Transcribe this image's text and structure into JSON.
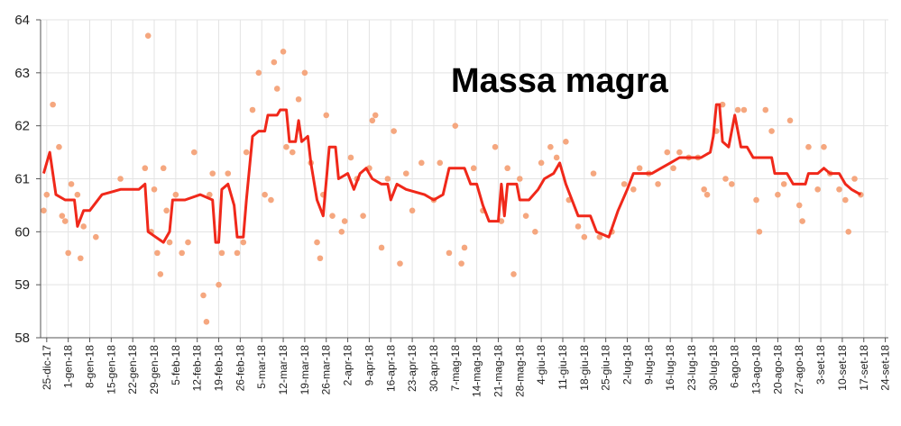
{
  "chart_data": {
    "type": "line",
    "title": "Massa magra",
    "xlim": [
      "2017-12-23",
      "2018-09-25"
    ],
    "ylim": [
      58,
      64
    ],
    "yticks": [
      58,
      59,
      60,
      61,
      62,
      63,
      64
    ],
    "grid": true,
    "xticks": [
      {
        "value": "2017-12-25",
        "label": "25-dic-17"
      },
      {
        "value": "2018-01-01",
        "label": "1-gen-18"
      },
      {
        "value": "2018-01-08",
        "label": "8-gen-18"
      },
      {
        "value": "2018-01-15",
        "label": "15-gen-18"
      },
      {
        "value": "2018-01-22",
        "label": "22-gen-18"
      },
      {
        "value": "2018-01-29",
        "label": "29-gen-18"
      },
      {
        "value": "2018-02-05",
        "label": "5-feb-18"
      },
      {
        "value": "2018-02-12",
        "label": "12-feb-18"
      },
      {
        "value": "2018-02-19",
        "label": "19-feb-18"
      },
      {
        "value": "2018-02-26",
        "label": "26-feb-18"
      },
      {
        "value": "2018-03-05",
        "label": "5-mar-18"
      },
      {
        "value": "2018-03-12",
        "label": "12-mar-18"
      },
      {
        "value": "2018-03-19",
        "label": "19-mar-18"
      },
      {
        "value": "2018-03-26",
        "label": "26-mar-18"
      },
      {
        "value": "2018-04-02",
        "label": "2-apr-18"
      },
      {
        "value": "2018-04-09",
        "label": "9-apr-18"
      },
      {
        "value": "2018-04-16",
        "label": "16-apr-18"
      },
      {
        "value": "2018-04-23",
        "label": "23-apr-18"
      },
      {
        "value": "2018-04-30",
        "label": "30-apr-18"
      },
      {
        "value": "2018-05-07",
        "label": "7-mag-18"
      },
      {
        "value": "2018-05-14",
        "label": "14-mag-18"
      },
      {
        "value": "2018-05-21",
        "label": "21-mag-18"
      },
      {
        "value": "2018-05-28",
        "label": "28-mag-18"
      },
      {
        "value": "2018-06-04",
        "label": "4-giu-18"
      },
      {
        "value": "2018-06-11",
        "label": "11-giu-18"
      },
      {
        "value": "2018-06-18",
        "label": "18-giu-18"
      },
      {
        "value": "2018-06-25",
        "label": "25-giu-18"
      },
      {
        "value": "2018-07-02",
        "label": "2-lug-18"
      },
      {
        "value": "2018-07-09",
        "label": "9-lug-18"
      },
      {
        "value": "2018-07-16",
        "label": "16-lug-18"
      },
      {
        "value": "2018-07-23",
        "label": "23-lug-18"
      },
      {
        "value": "2018-07-30",
        "label": "30-lug-18"
      },
      {
        "value": "2018-08-06",
        "label": "6-ago-18"
      },
      {
        "value": "2018-08-13",
        "label": "13-ago-18"
      },
      {
        "value": "2018-08-20",
        "label": "20-ago-18"
      },
      {
        "value": "2018-08-27",
        "label": "27-ago-18"
      },
      {
        "value": "2018-09-03",
        "label": "3-set-18"
      },
      {
        "value": "2018-09-10",
        "label": "10-set-18"
      },
      {
        "value": "2018-09-17",
        "label": "17-set-18"
      },
      {
        "value": "2018-09-24",
        "label": "24-set-18"
      }
    ],
    "series": [
      {
        "type": "scatter",
        "color": "#f5a77f",
        "x": [
          "2017-12-24",
          "2017-12-25",
          "2017-12-27",
          "2017-12-29",
          "2017-12-30",
          "2017-12-31",
          "2018-01-01",
          "2018-01-02",
          "2018-01-04",
          "2018-01-05",
          "2018-01-06",
          "2018-01-10",
          "2018-01-18",
          "2018-01-26",
          "2018-01-27",
          "2018-01-28",
          "2018-01-29",
          "2018-01-30",
          "2018-01-31",
          "2018-02-01",
          "2018-02-02",
          "2018-02-03",
          "2018-02-05",
          "2018-02-07",
          "2018-02-09",
          "2018-02-11",
          "2018-02-14",
          "2018-02-15",
          "2018-02-16",
          "2018-02-17",
          "2018-02-19",
          "2018-02-20",
          "2018-02-22",
          "2018-02-25",
          "2018-02-27",
          "2018-02-28",
          "2018-03-02",
          "2018-03-04",
          "2018-03-06",
          "2018-03-08",
          "2018-03-09",
          "2018-03-10",
          "2018-03-12",
          "2018-03-13",
          "2018-03-15",
          "2018-03-17",
          "2018-03-19",
          "2018-03-21",
          "2018-03-23",
          "2018-03-24",
          "2018-03-25",
          "2018-03-26",
          "2018-03-28",
          "2018-03-31",
          "2018-04-01",
          "2018-04-03",
          "2018-04-05",
          "2018-04-07",
          "2018-04-09",
          "2018-04-10",
          "2018-04-11",
          "2018-04-13",
          "2018-04-15",
          "2018-04-17",
          "2018-04-19",
          "2018-04-21",
          "2018-04-23",
          "2018-04-26",
          "2018-04-30",
          "2018-05-02",
          "2018-05-05",
          "2018-05-07",
          "2018-05-09",
          "2018-05-10",
          "2018-05-13",
          "2018-05-16",
          "2018-05-20",
          "2018-05-22",
          "2018-05-24",
          "2018-05-26",
          "2018-05-28",
          "2018-05-30",
          "2018-06-02",
          "2018-06-04",
          "2018-06-07",
          "2018-06-09",
          "2018-06-12",
          "2018-06-13",
          "2018-06-16",
          "2018-06-18",
          "2018-06-21",
          "2018-06-23",
          "2018-06-27",
          "2018-07-01",
          "2018-07-04",
          "2018-07-06",
          "2018-07-09",
          "2018-07-12",
          "2018-07-15",
          "2018-07-17",
          "2018-07-19",
          "2018-07-22",
          "2018-07-25",
          "2018-07-27",
          "2018-07-28",
          "2018-07-31",
          "2018-08-02",
          "2018-08-03",
          "2018-08-05",
          "2018-08-07",
          "2018-08-09",
          "2018-08-13",
          "2018-08-14",
          "2018-08-16",
          "2018-08-18",
          "2018-08-20",
          "2018-08-22",
          "2018-08-24",
          "2018-08-27",
          "2018-08-28",
          "2018-08-30",
          "2018-09-02",
          "2018-09-04",
          "2018-09-06",
          "2018-09-09",
          "2018-09-11",
          "2018-09-12",
          "2018-09-14",
          "2018-09-16"
        ],
        "values": [
          60.4,
          60.7,
          62.4,
          61.6,
          60.3,
          60.2,
          59.6,
          60.9,
          60.7,
          59.5,
          60.1,
          59.9,
          61.0,
          61.2,
          63.7,
          60.0,
          60.8,
          59.6,
          59.2,
          61.2,
          60.4,
          59.8,
          60.7,
          59.6,
          59.8,
          61.5,
          58.8,
          58.3,
          60.7,
          61.1,
          59.0,
          59.6,
          61.1,
          59.6,
          59.8,
          61.5,
          62.3,
          63.0,
          60.7,
          60.6,
          63.2,
          62.7,
          63.4,
          61.6,
          61.5,
          62.5,
          63.0,
          61.3,
          59.8,
          59.5,
          60.7,
          62.2,
          60.3,
          60.0,
          60.2,
          61.4,
          61.0,
          60.3,
          61.2,
          62.1,
          62.2,
          59.7,
          61.0,
          61.9,
          59.4,
          61.1,
          60.4,
          61.3,
          60.6,
          61.3,
          59.6,
          62.0,
          59.4,
          59.7,
          61.2,
          60.4,
          61.6,
          60.2,
          61.2,
          59.2,
          61.0,
          60.3,
          60.0,
          61.3,
          61.6,
          61.4,
          61.7,
          60.6,
          60.1,
          59.9,
          61.1,
          59.9,
          60.0,
          60.9,
          60.8,
          61.2,
          61.1,
          60.9,
          61.5,
          61.2,
          61.5,
          61.4,
          61.4,
          60.8,
          60.7,
          61.9,
          62.4,
          61.0,
          60.9,
          62.3,
          62.3,
          60.6,
          60.0,
          62.3,
          61.9,
          60.7,
          60.9,
          62.1,
          60.5,
          60.2,
          61.6,
          60.8,
          61.6,
          61.1,
          60.8,
          60.6,
          60.0,
          61.0,
          60.7
        ]
      },
      {
        "type": "line",
        "color": "#f0281a",
        "x": [
          "2017-12-24",
          "2017-12-26",
          "2017-12-28",
          "2017-12-31",
          "2018-01-03",
          "2018-01-04",
          "2018-01-06",
          "2018-01-08",
          "2018-01-12",
          "2018-01-18",
          "2018-01-24",
          "2018-01-26",
          "2018-01-27",
          "2018-02-01",
          "2018-02-03",
          "2018-02-04",
          "2018-02-08",
          "2018-02-13",
          "2018-02-17",
          "2018-02-18",
          "2018-02-19",
          "2018-02-20",
          "2018-02-22",
          "2018-02-24",
          "2018-02-25",
          "2018-02-27",
          "2018-02-28",
          "2018-03-02",
          "2018-03-04",
          "2018-03-06",
          "2018-03-07",
          "2018-03-10",
          "2018-03-11",
          "2018-03-13",
          "2018-03-14",
          "2018-03-16",
          "2018-03-17",
          "2018-03-18",
          "2018-03-20",
          "2018-03-21",
          "2018-03-23",
          "2018-03-25",
          "2018-03-27",
          "2018-03-29",
          "2018-03-30",
          "2018-04-02",
          "2018-04-04",
          "2018-04-06",
          "2018-04-08",
          "2018-04-10",
          "2018-04-13",
          "2018-04-15",
          "2018-04-16",
          "2018-04-18",
          "2018-04-21",
          "2018-04-27",
          "2018-04-30",
          "2018-05-03",
          "2018-05-05",
          "2018-05-10",
          "2018-05-12",
          "2018-05-14",
          "2018-05-16",
          "2018-05-18",
          "2018-05-21",
          "2018-05-22",
          "2018-05-23",
          "2018-05-24",
          "2018-05-27",
          "2018-05-28",
          "2018-05-31",
          "2018-06-03",
          "2018-06-05",
          "2018-06-08",
          "2018-06-10",
          "2018-06-12",
          "2018-06-14",
          "2018-06-16",
          "2018-06-20",
          "2018-06-22",
          "2018-06-26",
          "2018-06-29",
          "2018-07-02",
          "2018-07-04",
          "2018-07-10",
          "2018-07-13",
          "2018-07-16",
          "2018-07-19",
          "2018-07-26",
          "2018-07-29",
          "2018-07-30",
          "2018-07-31",
          "2018-08-01",
          "2018-08-02",
          "2018-08-04",
          "2018-08-06",
          "2018-08-08",
          "2018-08-10",
          "2018-08-12",
          "2018-08-18",
          "2018-08-19",
          "2018-08-23",
          "2018-08-25",
          "2018-08-29",
          "2018-08-30",
          "2018-09-02",
          "2018-09-04",
          "2018-09-06",
          "2018-09-09",
          "2018-09-11",
          "2018-09-13",
          "2018-09-16"
        ],
        "values": [
          61.1,
          61.5,
          60.7,
          60.6,
          60.6,
          60.1,
          60.4,
          60.4,
          60.7,
          60.8,
          60.8,
          60.9,
          60.0,
          59.8,
          60.0,
          60.6,
          60.6,
          60.7,
          60.6,
          59.8,
          59.8,
          60.8,
          60.9,
          60.5,
          59.9,
          59.9,
          60.6,
          61.8,
          61.9,
          61.9,
          62.2,
          62.2,
          62.3,
          62.3,
          61.7,
          61.7,
          62.1,
          61.7,
          61.8,
          61.3,
          60.6,
          60.3,
          61.6,
          61.6,
          61.0,
          61.1,
          60.8,
          61.1,
          61.2,
          61.0,
          60.9,
          60.9,
          60.6,
          60.9,
          60.8,
          60.7,
          60.6,
          60.7,
          61.2,
          61.2,
          60.9,
          60.9,
          60.5,
          60.2,
          60.2,
          60.9,
          60.3,
          60.9,
          60.9,
          60.6,
          60.6,
          60.8,
          61.0,
          61.1,
          61.3,
          60.9,
          60.6,
          60.3,
          60.3,
          60.0,
          59.9,
          60.4,
          60.8,
          61.1,
          61.1,
          61.2,
          61.3,
          61.4,
          61.4,
          61.5,
          61.8,
          62.4,
          62.4,
          61.7,
          61.6,
          62.2,
          61.6,
          61.6,
          61.4,
          61.4,
          61.1,
          61.1,
          60.9,
          60.9,
          61.1,
          61.1,
          61.2,
          61.1,
          61.1,
          60.9,
          60.8,
          60.7
        ]
      }
    ]
  }
}
